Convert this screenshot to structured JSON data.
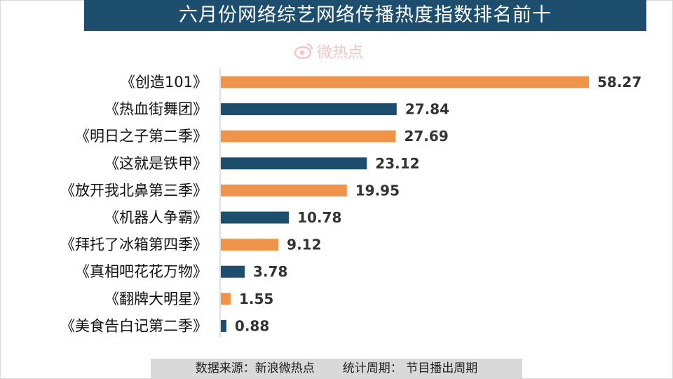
{
  "title": "六月份网络综艺网络传播热度指数排名前十",
  "watermark": "微热点",
  "footer": {
    "source": "数据来源：新浪微热点",
    "period": "统计周期： 节目播出周期"
  },
  "colors": {
    "title_bg": "#1e4e6e",
    "orange": "#f0944c",
    "navy": "#1e4e6e",
    "footer_bg": "#d9d9d9"
  },
  "chart_data": {
    "type": "bar",
    "orientation": "horizontal",
    "categories": [
      "《创造101》",
      "《热血街舞团》",
      "《明日之子第二季》",
      "《这就是铁甲》",
      "《放开我北鼻第三季》",
      "《机器人争霸》",
      "《拜托了冰箱第四季》",
      "《真相吧花花万物》",
      "《翻牌大明星》",
      "《美食告白记第二季》"
    ],
    "values": [
      58.27,
      27.84,
      27.69,
      23.12,
      19.95,
      10.78,
      9.12,
      3.78,
      1.55,
      0.88
    ],
    "value_labels": [
      "58.27",
      "27.84",
      "27.69",
      "23.12",
      "19.95",
      "10.78",
      "9.12",
      "3.78",
      "1.55",
      "0.88"
    ],
    "bar_colors": [
      "#f0944c",
      "#1e4e6e",
      "#f0944c",
      "#1e4e6e",
      "#f0944c",
      "#1e4e6e",
      "#f0944c",
      "#1e4e6e",
      "#f0944c",
      "#1e4e6e"
    ],
    "grid": false,
    "legend": "none"
  }
}
